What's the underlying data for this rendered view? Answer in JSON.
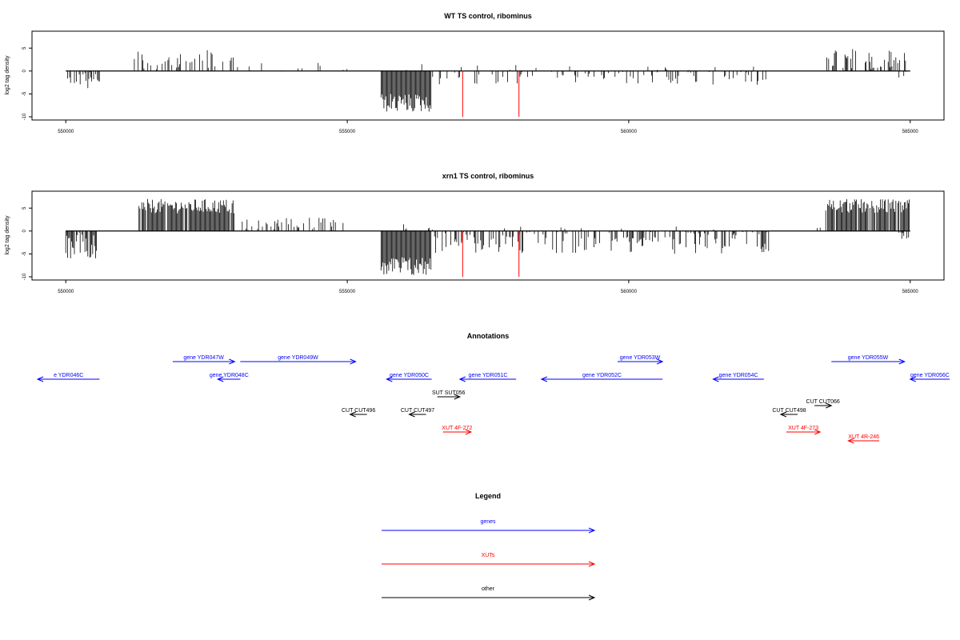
{
  "chart_data": [
    {
      "type": "bar",
      "title": "WT TS control, ribominus",
      "ylabel": "log2 tag density",
      "xlabel": "",
      "xlim": [
        549400,
        565600
      ],
      "ylim": [
        -10,
        8
      ],
      "x_ticks": [
        550000,
        555000,
        560000,
        565000
      ],
      "y_ticks": [
        5,
        0,
        -5,
        -10
      ],
      "grid": false,
      "series": [
        {
          "strand": "plus",
          "regions": [
            {
              "x": [
                551200,
                553000
              ],
              "max": 5,
              "density": 0.35
            },
            {
              "x": [
                553000,
                555000
              ],
              "max": 2,
              "density": 0.12
            },
            {
              "x": [
                556000,
                559000
              ],
              "max": 1.5,
              "density": 0.05
            },
            {
              "x": [
                560000,
                563000
              ],
              "max": 1,
              "density": 0.04
            },
            {
              "x": [
                563500,
                565000
              ],
              "max": 5,
              "density": 0.5
            }
          ]
        },
        {
          "strand": "minus",
          "regions": [
            {
              "x": [
                550000,
                550600
              ],
              "max": -4,
              "density": 0.5
            },
            {
              "x": [
                555600,
                556500
              ],
              "max": -9,
              "density": 1.0
            },
            {
              "x": [
                556500,
                562500
              ],
              "max": -3,
              "density": 0.22
            },
            {
              "x": [
                564800,
                565000
              ],
              "max": -3,
              "density": 0.5
            }
          ]
        }
      ],
      "markers": [
        {
          "x": 557050,
          "y": -10
        },
        {
          "x": 558050,
          "y": -10
        }
      ]
    },
    {
      "type": "bar",
      "title": "xrn1 TS control, ribominus",
      "ylabel": "log2 tag density",
      "xlabel": "",
      "xlim": [
        549400,
        565600
      ],
      "ylim": [
        -10,
        8
      ],
      "x_ticks": [
        550000,
        555000,
        560000,
        565000
      ],
      "y_ticks": [
        5,
        0,
        -5,
        -10
      ],
      "grid": false,
      "series": [
        {
          "strand": "plus",
          "regions": [
            {
              "x": [
                551300,
                553000
              ],
              "max": 7,
              "density": 0.9
            },
            {
              "x": [
                553100,
                555000
              ],
              "max": 3,
              "density": 0.45
            },
            {
              "x": [
                556000,
                559000
              ],
              "max": 1.5,
              "density": 0.08
            },
            {
              "x": [
                559000,
                563500
              ],
              "max": 1,
              "density": 0.05
            },
            {
              "x": [
                563500,
                565000
              ],
              "max": 7,
              "density": 0.9
            }
          ]
        },
        {
          "strand": "minus",
          "regions": [
            {
              "x": [
                550000,
                550600
              ],
              "max": -6,
              "density": 0.8
            },
            {
              "x": [
                555600,
                556500
              ],
              "max": -10,
              "density": 1.0
            },
            {
              "x": [
                556500,
                562500
              ],
              "max": -5,
              "density": 0.45
            },
            {
              "x": [
                564800,
                565000
              ],
              "max": -2,
              "density": 0.5
            }
          ]
        }
      ],
      "markers": [
        {
          "x": 557050,
          "y": -10
        },
        {
          "x": 558050,
          "y": -10
        }
      ]
    }
  ],
  "annotations": {
    "title": "Annotations",
    "features": [
      {
        "label": "e YDR046C",
        "start": 549500,
        "end": 550600,
        "strand": "-",
        "kind": "genes",
        "row": 1
      },
      {
        "label": "gene YDR047W",
        "start": 551900,
        "end": 553000,
        "strand": "+",
        "kind": "genes",
        "row": 0
      },
      {
        "label": "gene YDR048C",
        "start": 552700,
        "end": 553100,
        "strand": "-",
        "kind": "genes",
        "row": 1
      },
      {
        "label": "gene YDR049W",
        "start": 553100,
        "end": 555150,
        "strand": "+",
        "kind": "genes",
        "row": 0
      },
      {
        "label": "gene YDR050C",
        "start": 555700,
        "end": 556500,
        "strand": "-",
        "kind": "genes",
        "row": 1
      },
      {
        "label": "gene YDR051C",
        "start": 557000,
        "end": 558000,
        "strand": "-",
        "kind": "genes",
        "row": 1
      },
      {
        "label": "gene YDR052C",
        "start": 558450,
        "end": 560600,
        "strand": "-",
        "kind": "genes",
        "row": 1
      },
      {
        "label": "gene YDR053W",
        "start": 559800,
        "end": 560600,
        "strand": "+",
        "kind": "genes",
        "row": 0
      },
      {
        "label": "gene YDR054C",
        "start": 561500,
        "end": 562400,
        "strand": "-",
        "kind": "genes",
        "row": 1
      },
      {
        "label": "gene YDR055W",
        "start": 563600,
        "end": 564900,
        "strand": "+",
        "kind": "genes",
        "row": 0
      },
      {
        "label": "gene YDR056C",
        "start": 565000,
        "end": 565700,
        "strand": "-",
        "kind": "genes",
        "row": 1
      },
      {
        "label": "SUT SUT056",
        "start": 556600,
        "end": 557000,
        "strand": "+",
        "kind": "other",
        "row": 2
      },
      {
        "label": "CUT CUT496",
        "start": 555050,
        "end": 555350,
        "strand": "-",
        "kind": "other",
        "row": 3
      },
      {
        "label": "CUT CUT497",
        "start": 556100,
        "end": 556400,
        "strand": "-",
        "kind": "other",
        "row": 3
      },
      {
        "label": "XUT 4F-272",
        "start": 556700,
        "end": 557200,
        "strand": "+",
        "kind": "XUTs",
        "row": 4
      },
      {
        "label": "CUT CUT498",
        "start": 562700,
        "end": 563000,
        "strand": "-",
        "kind": "other",
        "row": 3
      },
      {
        "label": "CUT CUT066",
        "start": 563300,
        "end": 563600,
        "strand": "+",
        "kind": "other",
        "row": 2.5
      },
      {
        "label": "XUT 4F-273",
        "start": 562800,
        "end": 563400,
        "strand": "+",
        "kind": "XUTs",
        "row": 4
      },
      {
        "label": "XUT 4R-246",
        "start": 563900,
        "end": 564450,
        "strand": "-",
        "kind": "XUTs",
        "row": 4.5
      }
    ]
  },
  "legend": {
    "title": "Legend",
    "items": [
      {
        "label": "genes",
        "color": "#0000ff"
      },
      {
        "label": "XUTs",
        "color": "#ff0000"
      },
      {
        "label": "other",
        "color": "#000000"
      }
    ]
  },
  "colors": {
    "genes": "#0000ff",
    "XUTs": "#ff0000",
    "other": "#000000",
    "marker": "#ff0000"
  }
}
